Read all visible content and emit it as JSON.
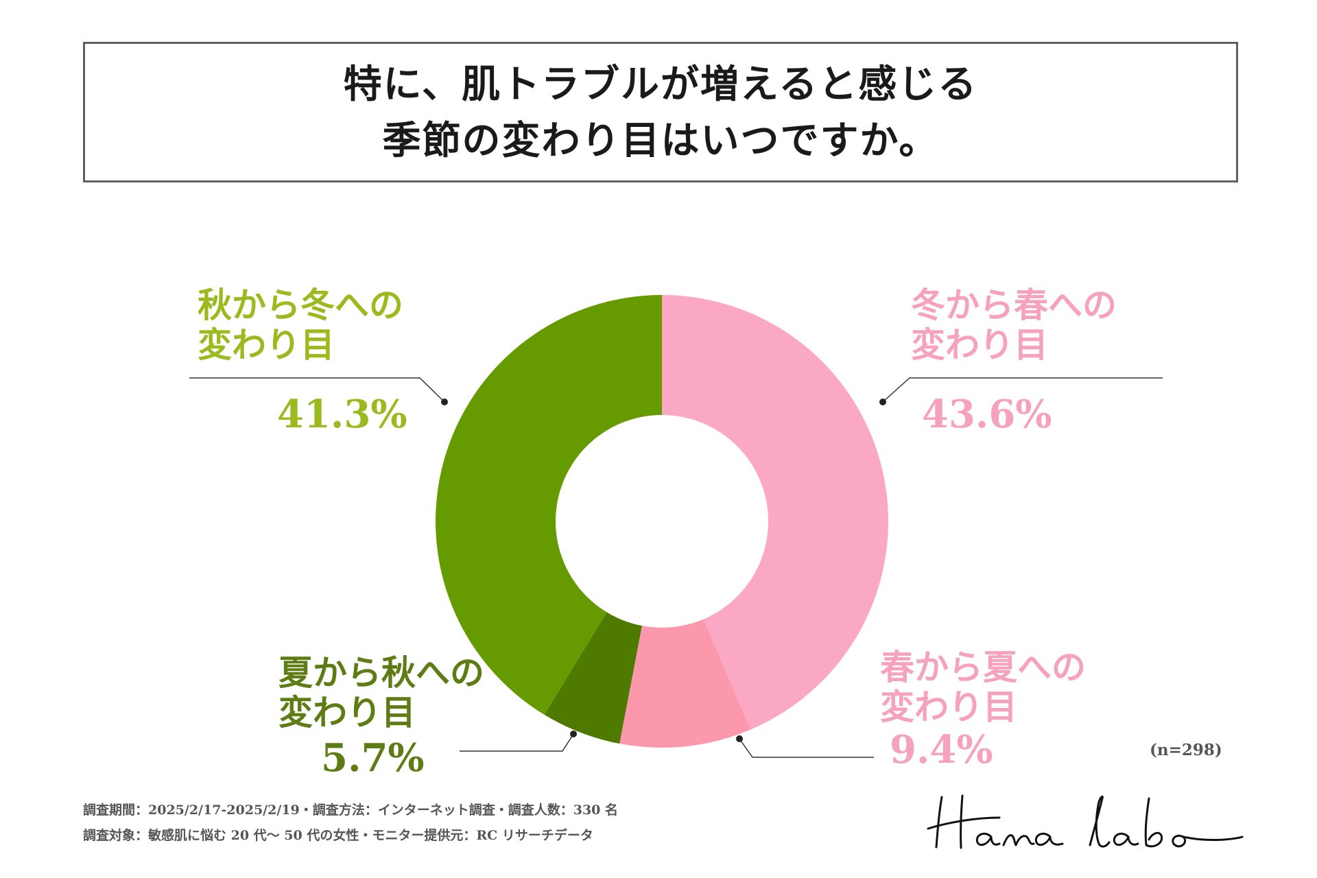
{
  "title": {
    "line1": "特に、肌トラブルが増えると感じる",
    "line2": "季節の変わり目はいつですか。"
  },
  "chart_data": {
    "type": "pie",
    "donut": true,
    "slices": [
      {
        "label_line1": "冬から春への",
        "label_line2": "変わり目",
        "value": 43.6,
        "value_label": "43.6%",
        "color": "#fba8c4",
        "label_color": "#f6a2bd"
      },
      {
        "label_line1": "春から夏への",
        "label_line2": "変わり目",
        "value": 9.4,
        "value_label": "9.4%",
        "color": "#fc98ab",
        "label_color": "#f6a2bd"
      },
      {
        "label_line1": "夏から秋への",
        "label_line2": "変わり目",
        "value": 5.7,
        "value_label": "5.7%",
        "color": "#4f7a00",
        "label_color": "#5d7d14"
      },
      {
        "label_line1": "秋から冬への",
        "label_line2": "変わり目",
        "value": 41.3,
        "value_label": "41.3%",
        "color": "#669b00",
        "label_color": "#9aba1e"
      }
    ]
  },
  "sample_size": "(n=298)",
  "footer": {
    "line1": "調査期間：2025/2/17-2025/2/19・調査方法：インターネット調査・調査人数：330 名",
    "line2": "調査対象：敏感肌に悩む 20 代〜 50 代の女性・モニター提供元：RC リサーチデータ"
  },
  "logo": {
    "text": "Hana labo"
  }
}
